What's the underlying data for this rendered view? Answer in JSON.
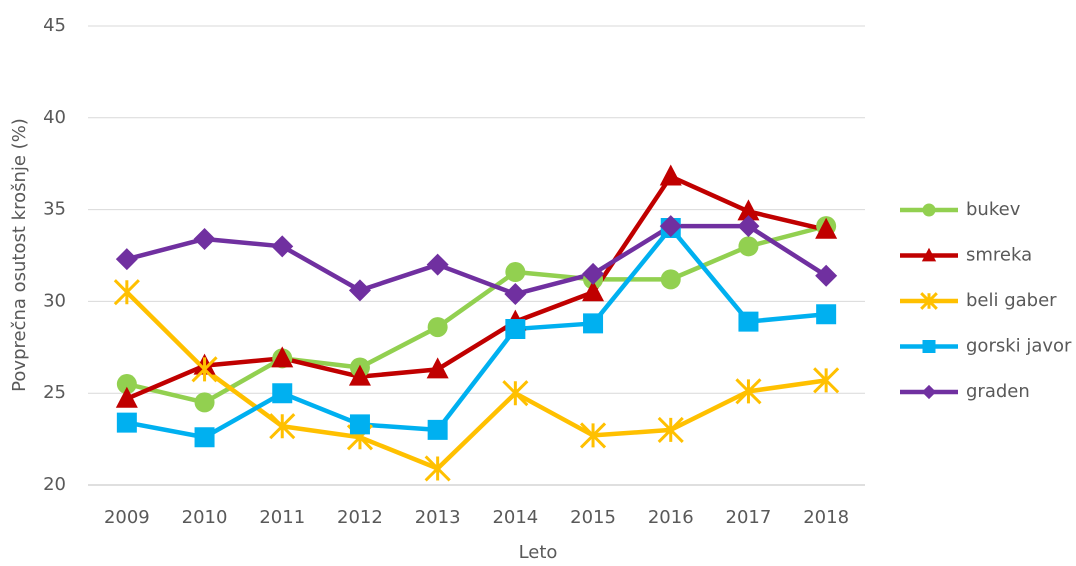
{
  "chart_data": {
    "type": "line",
    "x_label": "Leto",
    "y_label": "Povprečna osutost krošnje (%)",
    "categories": [
      "2009",
      "2010",
      "2011",
      "2012",
      "2013",
      "2014",
      "2015",
      "2016",
      "2017",
      "2018"
    ],
    "series": [
      {
        "name": "bukev",
        "color": "#92d050",
        "marker": "circle",
        "values": [
          25.5,
          24.5,
          26.9,
          26.4,
          28.6,
          31.6,
          31.2,
          31.2,
          33.0,
          34.1
        ]
      },
      {
        "name": "smreka",
        "color": "#c00000",
        "marker": "triangle",
        "values": [
          24.7,
          26.5,
          26.9,
          25.9,
          26.3,
          28.9,
          30.5,
          36.8,
          34.9,
          33.9
        ]
      },
      {
        "name": "beli gaber",
        "color": "#ffc000",
        "marker": "star",
        "values": [
          30.5,
          26.3,
          23.2,
          22.6,
          20.9,
          25.0,
          22.7,
          23.0,
          25.1,
          25.7
        ]
      },
      {
        "name": "gorski javor",
        "color": "#00b0f0",
        "marker": "square",
        "values": [
          23.4,
          22.6,
          25.0,
          23.3,
          23.0,
          28.5,
          28.8,
          34.0,
          28.9,
          29.3
        ]
      },
      {
        "name": "graden",
        "color": "#7030a0",
        "marker": "diamond",
        "values": [
          32.3,
          33.4,
          33.0,
          30.6,
          32.0,
          30.4,
          31.5,
          34.1,
          34.1,
          31.4
        ]
      }
    ],
    "ylim": [
      20,
      45
    ],
    "yticks": [
      20,
      25,
      30,
      35,
      40,
      45
    ],
    "grid": true,
    "legend": "right"
  }
}
